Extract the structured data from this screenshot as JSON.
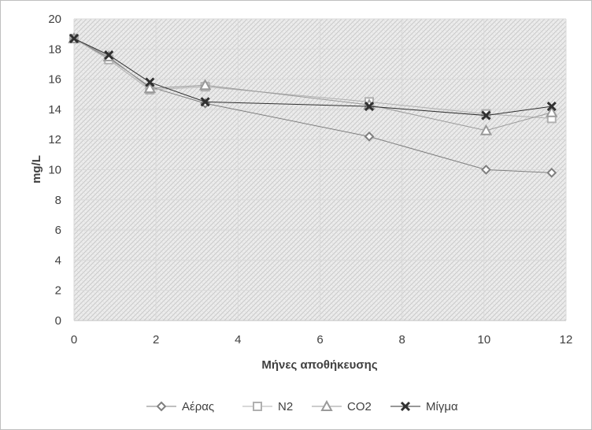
{
  "chart_data": {
    "type": "scatter",
    "xlabel": "Μήνες αποθήκευσης",
    "ylabel": "mg/L",
    "xlim": [
      0,
      12
    ],
    "ylim": [
      0,
      20
    ],
    "x_ticks": [
      "0",
      "2",
      "4",
      "6",
      "8",
      "10",
      "12"
    ],
    "y_ticks": [
      "0",
      "2",
      "4",
      "6",
      "8",
      "10",
      "12",
      "14",
      "16",
      "18",
      "20"
    ],
    "grid": true,
    "legend_position": "bottom",
    "series": [
      {
        "name": "Αέρας",
        "marker": "diamond",
        "color": "#7f7f7f",
        "x": [
          0,
          0.85,
          1.85,
          3.2,
          7.2,
          10.05,
          11.65
        ],
        "y": [
          18.7,
          17.4,
          15.5,
          14.4,
          12.2,
          10.0,
          9.8
        ]
      },
      {
        "name": "N2",
        "marker": "square",
        "color": "#b0b0b0",
        "x": [
          0,
          0.85,
          1.85,
          3.2,
          7.2,
          10.05,
          11.65
        ],
        "y": [
          18.7,
          17.3,
          15.3,
          15.5,
          14.5,
          13.7,
          13.4
        ]
      },
      {
        "name": "CO2",
        "marker": "triangle",
        "color": "#9a9a9a",
        "x": [
          0,
          0.85,
          1.85,
          3.2,
          7.2,
          10.05,
          11.65
        ],
        "y": [
          18.7,
          17.5,
          15.4,
          15.6,
          14.3,
          12.6,
          13.8
        ]
      },
      {
        "name": "Μίγμα",
        "marker": "x",
        "color": "#303030",
        "x": [
          0,
          0.85,
          1.85,
          3.2,
          7.2,
          10.05,
          11.65
        ],
        "y": [
          18.7,
          17.6,
          15.8,
          14.5,
          14.2,
          13.6,
          14.2
        ]
      }
    ]
  }
}
